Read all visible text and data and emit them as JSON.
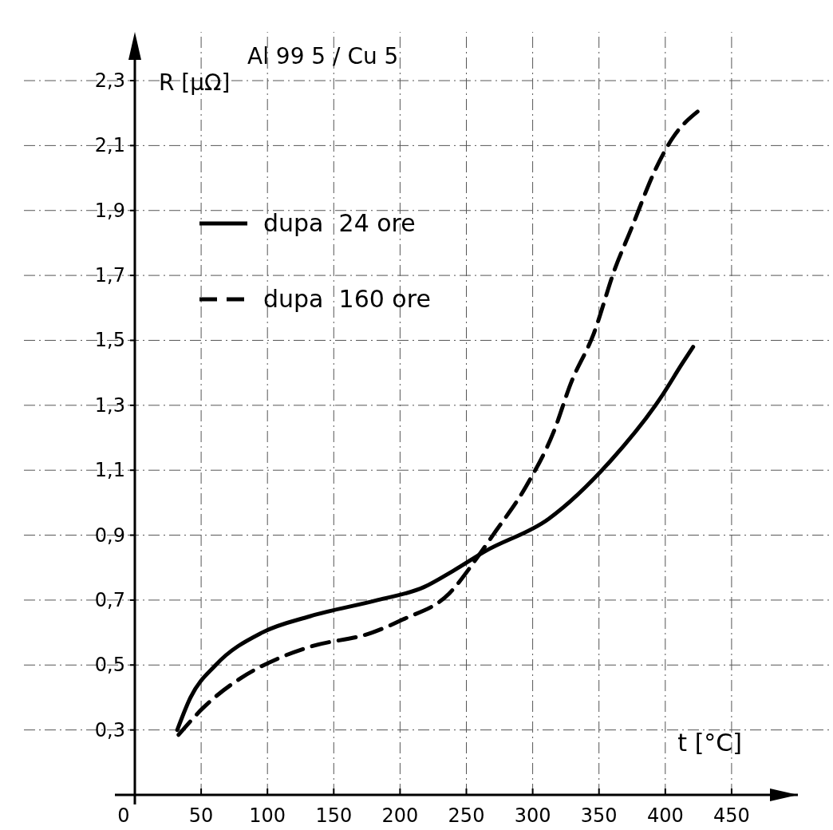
{
  "chart_data": {
    "type": "line",
    "xlabel": "t [°C]",
    "ylabel": "R [μΩ]",
    "legend_title": "Al 99 5 / Cu 5",
    "legend": "top left",
    "grid": true,
    "marker": "none",
    "xlim": [
      0,
      500
    ],
    "ylim": [
      0.1,
      2.45
    ],
    "xticks": [
      0,
      50,
      100,
      150,
      200,
      250,
      300,
      350,
      400,
      450
    ],
    "yticks": [
      {
        "value": 0.3,
        "label": "0,3"
      },
      {
        "value": 0.5,
        "label": "0,5"
      },
      {
        "value": 0.7,
        "label": "0,7"
      },
      {
        "value": 0.9,
        "label": "0,9"
      },
      {
        "value": 1.1,
        "label": "1,1"
      },
      {
        "value": 1.3,
        "label": "1,3"
      },
      {
        "value": 1.5,
        "label": "1,5"
      },
      {
        "value": 1.7,
        "label": "1,7"
      },
      {
        "value": 1.9,
        "label": "1,9"
      },
      {
        "value": 2.1,
        "label": "2,1"
      },
      {
        "value": 2.3,
        "label": "2,3"
      }
    ],
    "series": [
      {
        "name": "dupa  24 ore",
        "color": "#000000",
        "line_style": "solid",
        "x": [
          32,
          42,
          61,
          96,
          132,
          183,
          218,
          240,
          264,
          312,
          359,
          396,
          413,
          421
        ],
        "values": [
          0.3,
          0.4,
          0.5,
          0.6,
          0.65,
          0.7,
          0.74,
          0.79,
          0.85,
          0.95,
          1.13,
          1.32,
          1.43,
          1.48
        ]
      },
      {
        "name": "dupa  160 ore",
        "color": "#000000",
        "line_style": "dashed",
        "x": [
          33,
          52,
          80,
          108,
          132,
          179,
          202,
          237,
          258,
          270,
          295,
          316,
          329,
          346,
          362,
          374,
          393,
          405,
          426
        ],
        "values": [
          0.285,
          0.37,
          0.46,
          0.52,
          0.556,
          0.6,
          0.64,
          0.72,
          0.83,
          0.9,
          1.05,
          1.22,
          1.37,
          1.52,
          1.72,
          1.84,
          2.03,
          2.12,
          2.21
        ]
      }
    ]
  }
}
